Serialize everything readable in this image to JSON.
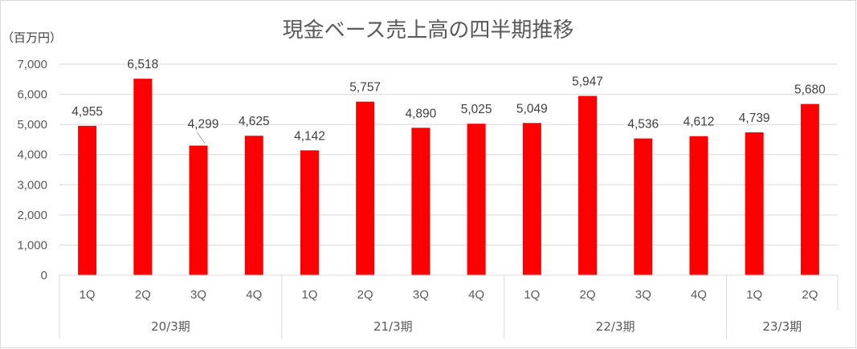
{
  "chart_data": {
    "type": "bar",
    "title": "現金ベース売上高の四半期推移",
    "unit_label": "（百万円）",
    "ylim": [
      0,
      7000
    ],
    "ytick_step": 1000,
    "ytick_labels": [
      "0",
      "1,000",
      "2,000",
      "3,000",
      "4,000",
      "5,000",
      "6,000",
      "7,000"
    ],
    "grid": true,
    "bar_color": "#ff0000",
    "groups": [
      {
        "label": "20/3期",
        "count": 4
      },
      {
        "label": "21/3期",
        "count": 4
      },
      {
        "label": "22/3期",
        "count": 4
      },
      {
        "label": "23/3期",
        "count": 2
      }
    ],
    "categories": [
      "1Q",
      "2Q",
      "3Q",
      "4Q",
      "1Q",
      "2Q",
      "3Q",
      "4Q",
      "1Q",
      "2Q",
      "3Q",
      "4Q",
      "1Q",
      "2Q"
    ],
    "values": [
      4955,
      6518,
      4299,
      4625,
      4142,
      5757,
      4890,
      5025,
      5049,
      5947,
      4536,
      4612,
      4739,
      5680
    ],
    "value_labels": [
      "4,955",
      "6,518",
      "4,299",
      "4,625",
      "4,142",
      "5,757",
      "4,890",
      "5,025",
      "5,049",
      "5,947",
      "4,536",
      "4,612",
      "4,739",
      "5,680"
    ]
  }
}
